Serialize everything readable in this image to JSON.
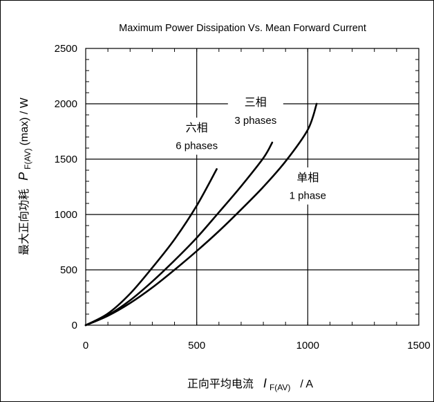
{
  "chart_data": {
    "type": "line",
    "title": "Maximum Power Dissipation Vs. Mean Forward Current",
    "ylabel": {
      "prefix": "最大正向功耗",
      "symbol": "P",
      "subscript": "F(AV)",
      "suffix": "(max) / W"
    },
    "xlabel": {
      "prefix": "正向平均电流",
      "symbol": "I",
      "subscript": "F(AV)",
      "suffix": "/ A"
    },
    "xlim": [
      0,
      1500
    ],
    "ylim": [
      0,
      2500
    ],
    "xticks": [
      0,
      500,
      1000,
      1500
    ],
    "yticks": [
      0,
      500,
      1000,
      1500,
      2000,
      2500
    ],
    "grid": true,
    "series": [
      {
        "name": "六相 6 phases",
        "label_cn": "六相",
        "label_en": "6 phases",
        "x": [
          0,
          100,
          200,
          300,
          400,
          500,
          590
        ],
        "y": [
          0,
          105,
          285,
          520,
          775,
          1080,
          1410
        ]
      },
      {
        "name": "三相 3 phases",
        "label_cn": "三相",
        "label_en": "3 phases",
        "x": [
          0,
          100,
          200,
          300,
          400,
          500,
          600,
          700,
          800,
          840
        ],
        "y": [
          0,
          90,
          225,
          395,
          585,
          790,
          1020,
          1255,
          1510,
          1650
        ]
      },
      {
        "name": "单相 1 phase",
        "label_cn": "单相",
        "label_en": "1 phase",
        "x": [
          0,
          100,
          200,
          300,
          400,
          500,
          600,
          700,
          800,
          900,
          1000,
          1040
        ],
        "y": [
          0,
          85,
          200,
          340,
          500,
          670,
          850,
          1045,
          1250,
          1480,
          1765,
          2000
        ]
      }
    ]
  }
}
